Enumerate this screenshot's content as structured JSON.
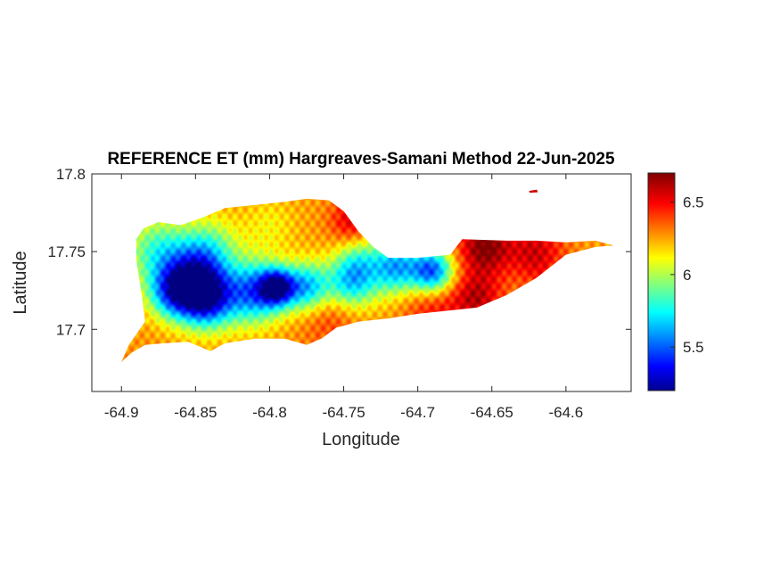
{
  "chart_data": {
    "type": "heatmap",
    "title": "REFERENCE ET (mm) Hargreaves-Samani Method  22-Jun-2025",
    "xlabel": "Longitude",
    "ylabel": "Latitude",
    "xlim": [
      -64.92,
      -64.556
    ],
    "ylim": [
      17.66,
      17.8
    ],
    "xticks": [
      -64.9,
      -64.85,
      -64.8,
      -64.75,
      -64.7,
      -64.65,
      -64.6
    ],
    "xtick_labels": [
      "-64.9",
      "-64.85",
      "-64.8",
      "-64.75",
      "-64.7",
      "-64.65",
      "-64.6"
    ],
    "yticks": [
      17.7,
      17.75,
      17.8
    ],
    "ytick_labels": [
      "17.7",
      "17.75",
      "17.8"
    ],
    "colorbar": {
      "colormap": "jet",
      "range": [
        5.2,
        6.7
      ],
      "ticks": [
        5.5,
        6,
        6.5
      ],
      "tick_labels": [
        "5.5",
        "6",
        "6.5"
      ]
    },
    "boundary_lonlat": [
      [
        -64.9,
        17.679
      ],
      [
        -64.893,
        17.685
      ],
      [
        -64.884,
        17.69
      ],
      [
        -64.872,
        17.691
      ],
      [
        -64.855,
        17.692
      ],
      [
        -64.84,
        17.686
      ],
      [
        -64.83,
        17.691
      ],
      [
        -64.81,
        17.694
      ],
      [
        -64.79,
        17.694
      ],
      [
        -64.775,
        17.69
      ],
      [
        -64.765,
        17.694
      ],
      [
        -64.755,
        17.701
      ],
      [
        -64.74,
        17.705
      ],
      [
        -64.72,
        17.707
      ],
      [
        -64.7,
        17.71
      ],
      [
        -64.68,
        17.712
      ],
      [
        -64.66,
        17.714
      ],
      [
        -64.64,
        17.722
      ],
      [
        -64.62,
        17.733
      ],
      [
        -64.6,
        17.748
      ],
      [
        -64.58,
        17.753
      ],
      [
        -64.568,
        17.754
      ],
      [
        -64.58,
        17.757
      ],
      [
        -64.6,
        17.756
      ],
      [
        -64.62,
        17.757
      ],
      [
        -64.64,
        17.757
      ],
      [
        -64.67,
        17.758
      ],
      [
        -64.678,
        17.748
      ],
      [
        -64.7,
        17.746
      ],
      [
        -64.72,
        17.746
      ],
      [
        -64.73,
        17.753
      ],
      [
        -64.74,
        17.763
      ],
      [
        -64.75,
        17.776
      ],
      [
        -64.76,
        17.783
      ],
      [
        -64.775,
        17.784
      ],
      [
        -64.79,
        17.782
      ],
      [
        -64.81,
        17.78
      ],
      [
        -64.83,
        17.778
      ],
      [
        -64.845,
        17.772
      ],
      [
        -64.86,
        17.767
      ],
      [
        -64.875,
        17.769
      ],
      [
        -64.885,
        17.765
      ],
      [
        -64.89,
        17.758
      ],
      [
        -64.89,
        17.745
      ],
      [
        -64.886,
        17.72
      ],
      [
        -64.884,
        17.705
      ],
      [
        -64.895,
        17.69
      ]
    ],
    "islet_lonlat": [
      -64.622,
      17.789
    ],
    "et_field": {
      "base": 6.28,
      "features": [
        {
          "lon": -64.843,
          "lat": 17.72,
          "value": 5.3,
          "sigma": 0.013
        },
        {
          "lon": -64.865,
          "lat": 17.724,
          "value": 5.55,
          "sigma": 0.012
        },
        {
          "lon": -64.81,
          "lat": 17.724,
          "value": 5.55,
          "sigma": 0.014
        },
        {
          "lon": -64.795,
          "lat": 17.727,
          "value": 5.45,
          "sigma": 0.008
        },
        {
          "lon": -64.775,
          "lat": 17.727,
          "value": 5.65,
          "sigma": 0.011
        },
        {
          "lon": -64.745,
          "lat": 17.73,
          "value": 5.7,
          "sigma": 0.012
        },
        {
          "lon": -64.715,
          "lat": 17.74,
          "value": 5.65,
          "sigma": 0.012
        },
        {
          "lon": -64.69,
          "lat": 17.737,
          "value": 5.5,
          "sigma": 0.01
        },
        {
          "lon": -64.875,
          "lat": 17.75,
          "value": 5.85,
          "sigma": 0.015
        },
        {
          "lon": -64.84,
          "lat": 17.752,
          "value": 5.95,
          "sigma": 0.014
        },
        {
          "lon": -64.85,
          "lat": 17.738,
          "value": 5.8,
          "sigma": 0.013
        },
        {
          "lon": -64.88,
          "lat": 17.706,
          "value": 6.3,
          "sigma": 0.02
        },
        {
          "lon": -64.8,
          "lat": 17.767,
          "value": 6.15,
          "sigma": 0.012
        },
        {
          "lon": -64.745,
          "lat": 17.77,
          "value": 6.55,
          "sigma": 0.01
        },
        {
          "lon": -64.655,
          "lat": 17.753,
          "value": 6.7,
          "sigma": 0.013
        },
        {
          "lon": -64.62,
          "lat": 17.752,
          "value": 6.55,
          "sigma": 0.014
        },
        {
          "lon": -64.69,
          "lat": 17.715,
          "value": 6.5,
          "sigma": 0.014
        },
        {
          "lon": -64.66,
          "lat": 17.72,
          "value": 6.6,
          "sigma": 0.012
        },
        {
          "lon": -64.76,
          "lat": 17.71,
          "value": 6.45,
          "sigma": 0.015
        },
        {
          "lon": -64.8,
          "lat": 17.703,
          "value": 6.3,
          "sigma": 0.013
        },
        {
          "lon": -64.74,
          "lat": 17.745,
          "value": 6.05,
          "sigma": 0.01
        },
        {
          "lon": -64.62,
          "lat": 17.738,
          "value": 6.35,
          "sigma": 0.01
        }
      ]
    }
  }
}
